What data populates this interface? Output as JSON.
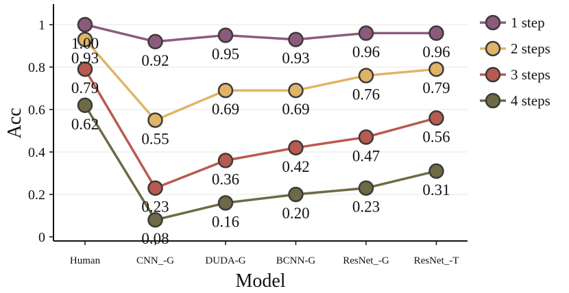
{
  "chart_data": {
    "type": "line",
    "xlabel": "Model",
    "ylabel": "Acc",
    "ylim": [
      0,
      1.05
    ],
    "yticks": [
      "0",
      "0.2",
      "0.4",
      "0.6",
      "0.8",
      "1"
    ],
    "ytick_values": [
      0,
      0.2,
      0.4,
      0.6,
      0.8,
      1.0
    ],
    "categories": [
      "Human",
      "CNN_-G",
      "DUDA-G",
      "BCNN-G",
      "ResNet_-G",
      "ResNet_-T"
    ],
    "grid": "horizontal",
    "legend_position": "right",
    "series": [
      {
        "name": "1 step",
        "color": "#8c5a7d",
        "values": [
          1.0,
          0.92,
          0.95,
          0.93,
          0.96,
          0.96
        ],
        "labels": [
          "1.00",
          "0.92",
          "0.95",
          "0.93",
          "0.96",
          "0.96"
        ]
      },
      {
        "name": "2 steps",
        "color": "#e0b466",
        "values": [
          0.93,
          0.55,
          0.69,
          0.69,
          0.76,
          0.79
        ],
        "labels": [
          "0.93",
          "0.55",
          "0.69",
          "0.69",
          "0.76",
          "0.79"
        ]
      },
      {
        "name": "3 steps",
        "color": "#b85a4f",
        "values": [
          0.79,
          0.23,
          0.36,
          0.42,
          0.47,
          0.56
        ],
        "labels": [
          "0.79",
          "0.23",
          "0.36",
          "0.42",
          "0.47",
          "0.56"
        ]
      },
      {
        "name": "4 steps",
        "color": "#6e6a45",
        "values": [
          0.62,
          0.08,
          0.16,
          0.2,
          0.23,
          0.31
        ],
        "labels": [
          "0.62",
          "0.08",
          "0.16",
          "0.20",
          "0.23",
          "0.31"
        ]
      }
    ]
  }
}
